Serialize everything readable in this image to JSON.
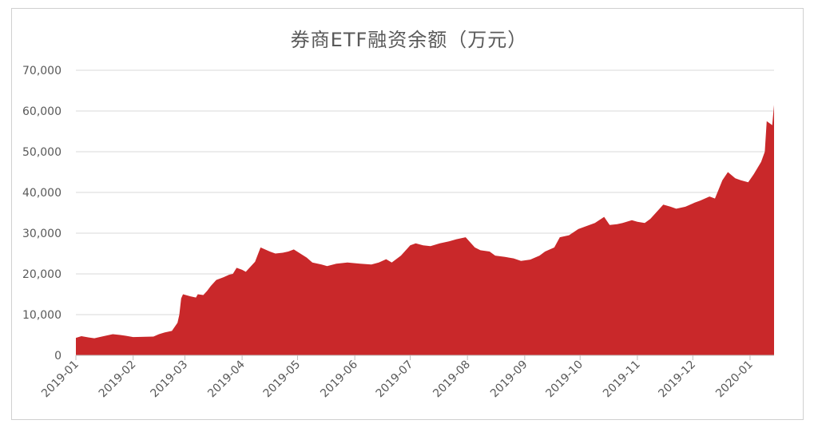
{
  "chart_data": {
    "type": "area",
    "title": "券商ETF融资余额（万元）",
    "color": "#c9282a",
    "ylim": [
      0,
      70000
    ],
    "yticks": [
      0,
      10000,
      20000,
      30000,
      40000,
      50000,
      60000,
      70000
    ],
    "ytick_labels": [
      "0",
      "10,000",
      "20,000",
      "30,000",
      "40,000",
      "50,000",
      "60,000",
      "70,000"
    ],
    "xticks": [
      "2019-01-01",
      "2019-02-01",
      "2019-03-01",
      "2019-04-01",
      "2019-05-01",
      "2019-06-01",
      "2019-07-01",
      "2019-08-01",
      "2019-09-01",
      "2019-10-01",
      "2019-11-01",
      "2019-12-01",
      "2020-01-01"
    ],
    "xtick_labels": [
      "2019-01",
      "2019-02",
      "2019-03",
      "2019-04",
      "2019-05",
      "2019-06",
      "2019-07",
      "2019-08",
      "2019-09",
      "2019-10",
      "2019-11",
      "2019-12",
      "2020-01"
    ],
    "grid": true,
    "x": [
      "2019-01-01",
      "2019-01-04",
      "2019-01-08",
      "2019-01-11",
      "2019-01-15",
      "2019-01-18",
      "2019-01-21",
      "2019-01-25",
      "2019-01-28",
      "2019-02-01",
      "2019-02-12",
      "2019-02-15",
      "2019-02-18",
      "2019-02-22",
      "2019-02-25",
      "2019-02-26",
      "2019-02-27",
      "2019-02-28",
      "2019-03-04",
      "2019-03-07",
      "2019-03-08",
      "2019-03-11",
      "2019-03-13",
      "2019-03-15",
      "2019-03-18",
      "2019-03-22",
      "2019-03-25",
      "2019-03-27",
      "2019-03-29",
      "2019-04-01",
      "2019-04-03",
      "2019-04-08",
      "2019-04-11",
      "2019-04-16",
      "2019-04-19",
      "2019-04-23",
      "2019-04-26",
      "2019-04-29",
      "2019-05-06",
      "2019-05-09",
      "2019-05-14",
      "2019-05-17",
      "2019-05-22",
      "2019-05-28",
      "2019-06-04",
      "2019-06-10",
      "2019-06-14",
      "2019-06-18",
      "2019-06-21",
      "2019-06-26",
      "2019-07-01",
      "2019-07-04",
      "2019-07-08",
      "2019-07-12",
      "2019-07-17",
      "2019-07-22",
      "2019-07-26",
      "2019-07-31",
      "2019-08-05",
      "2019-08-08",
      "2019-08-13",
      "2019-08-16",
      "2019-08-21",
      "2019-08-26",
      "2019-08-30",
      "2019-09-04",
      "2019-09-09",
      "2019-09-12",
      "2019-09-17",
      "2019-09-20",
      "2019-09-25",
      "2019-09-30",
      "2019-10-09",
      "2019-10-14",
      "2019-10-17",
      "2019-10-21",
      "2019-10-24",
      "2019-10-29",
      "2019-11-01",
      "2019-11-05",
      "2019-11-08",
      "2019-11-12",
      "2019-11-15",
      "2019-11-19",
      "2019-11-22",
      "2019-11-27",
      "2019-12-02",
      "2019-12-05",
      "2019-12-10",
      "2019-12-13",
      "2019-12-17",
      "2019-12-20",
      "2019-12-24",
      "2019-12-27",
      "2019-12-31",
      "2020-01-03",
      "2020-01-07",
      "2020-01-09",
      "2020-01-10",
      "2020-01-13",
      "2020-01-14"
    ],
    "series": [
      {
        "values": [
          4300,
          4700,
          4400,
          4200,
          4600,
          4900,
          5200,
          5000,
          4800,
          4500,
          4600,
          5200,
          5600,
          6000,
          8000,
          10000,
          14000,
          15000,
          14500,
          14200,
          15000,
          14800,
          15800,
          17000,
          18500,
          19200,
          19800,
          20000,
          21500,
          21000,
          20500,
          23000,
          26500,
          25500,
          25000,
          25200,
          25500,
          26000,
          24000,
          22800,
          22300,
          21900,
          22500,
          22800,
          22500,
          22300,
          22800,
          23600,
          22800,
          24500,
          27000,
          27500,
          27000,
          26800,
          27500,
          28000,
          28500,
          29000,
          26500,
          25800,
          25500,
          24500,
          24200,
          23800,
          23200,
          23500,
          24500,
          25500,
          26500,
          29000,
          29500,
          31000,
          32500,
          34000,
          32000,
          32200,
          32500,
          33200,
          32800,
          32500,
          33500,
          35500,
          37000,
          36500,
          36000,
          36500,
          37500,
          38000,
          39000,
          38500,
          43000,
          45000,
          43500,
          43000,
          42500,
          44500,
          47500,
          50000,
          57500,
          56500,
          61500
        ]
      }
    ]
  }
}
